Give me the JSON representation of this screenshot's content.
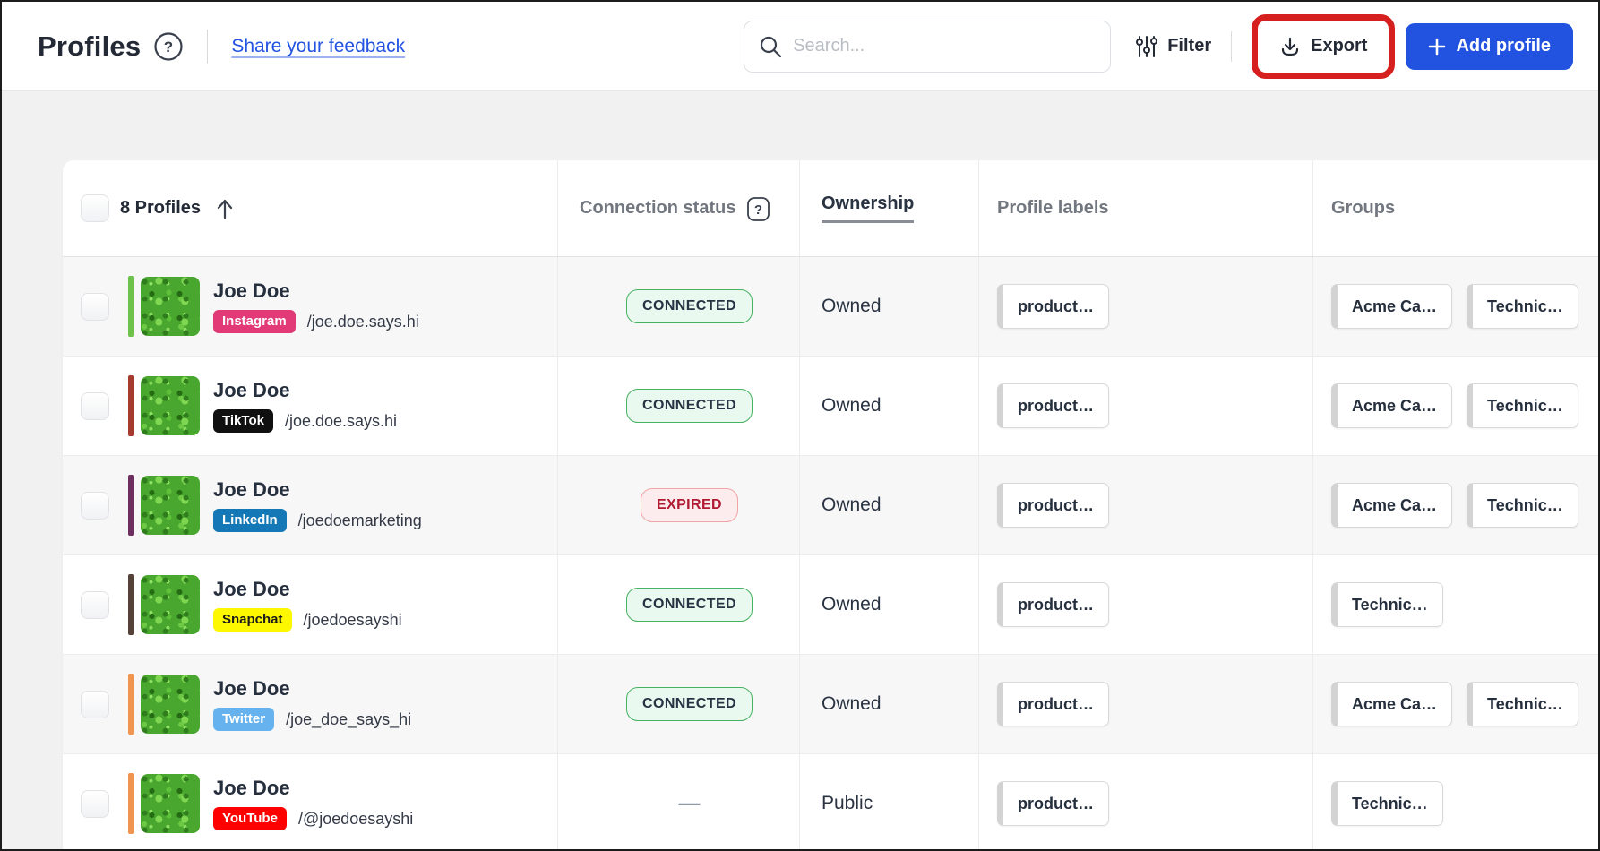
{
  "header": {
    "title": "Profiles",
    "feedback_link": "Share your feedback",
    "search_placeholder": "Search...",
    "filter_label": "Filter",
    "export_label": "Export",
    "add_profile_label": "Add profile"
  },
  "table": {
    "count_label": "8 Profiles",
    "columns": [
      "Connection status",
      "Ownership",
      "Profile labels",
      "Groups"
    ],
    "rows": [
      {
        "name": "Joe Doe",
        "network": "Instagram",
        "network_bg": "#e23a76",
        "network_text": "#ffffff",
        "handle": "/joe.doe.says.hi",
        "bar_color": "#6cc24a",
        "status": {
          "type": "connected",
          "label": "CONNECTED"
        },
        "ownership": "Owned",
        "labels": [
          "product…"
        ],
        "groups": [
          "Acme Ca…",
          "Technic…"
        ]
      },
      {
        "name": "Joe Doe",
        "network": "TikTok",
        "network_bg": "#101010",
        "network_text": "#ffffff",
        "handle": "/joe.doe.says.hi",
        "bar_color": "#a43b2e",
        "status": {
          "type": "connected",
          "label": "CONNECTED"
        },
        "ownership": "Owned",
        "labels": [
          "product…"
        ],
        "groups": [
          "Acme Ca…",
          "Technic…"
        ]
      },
      {
        "name": "Joe Doe",
        "network": "LinkedIn",
        "network_bg": "#1478b6",
        "network_text": "#ffffff",
        "handle": "/joedoemarketing",
        "bar_color": "#6e2f60",
        "status": {
          "type": "expired",
          "label": "EXPIRED"
        },
        "ownership": "Owned",
        "labels": [
          "product…"
        ],
        "groups": [
          "Acme Ca…",
          "Technic…"
        ]
      },
      {
        "name": "Joe Doe",
        "network": "Snapchat",
        "network_bg": "#fdf800",
        "network_text": "#1a1a1a",
        "handle": "/joedoesayshi",
        "bar_color": "#564138",
        "status": {
          "type": "connected",
          "label": "CONNECTED"
        },
        "ownership": "Owned",
        "labels": [
          "product…"
        ],
        "groups": [
          "Technic…"
        ]
      },
      {
        "name": "Joe Doe",
        "network": "Twitter",
        "network_bg": "#66b2ee",
        "network_text": "#ffffff",
        "handle": "/joe_doe_says_hi",
        "bar_color": "#f0954f",
        "status": {
          "type": "connected",
          "label": "CONNECTED"
        },
        "ownership": "Owned",
        "labels": [
          "product…"
        ],
        "groups": [
          "Acme Ca…",
          "Technic…"
        ]
      },
      {
        "name": "Joe Doe",
        "network": "YouTube",
        "network_bg": "#fe0000",
        "network_text": "#ffffff",
        "handle": "/@joedoesayshi",
        "bar_color": "#f0954f",
        "status": {
          "type": "none",
          "label": "—"
        },
        "ownership": "Public",
        "labels": [
          "product…"
        ],
        "groups": [
          "Technic…"
        ]
      }
    ]
  },
  "colors": {
    "accent_blue": "#2152e0",
    "link_blue": "#2253e2",
    "annotation_red": "#d6201f",
    "connected_border": "#46b160",
    "expired_text": "#b01a32"
  }
}
